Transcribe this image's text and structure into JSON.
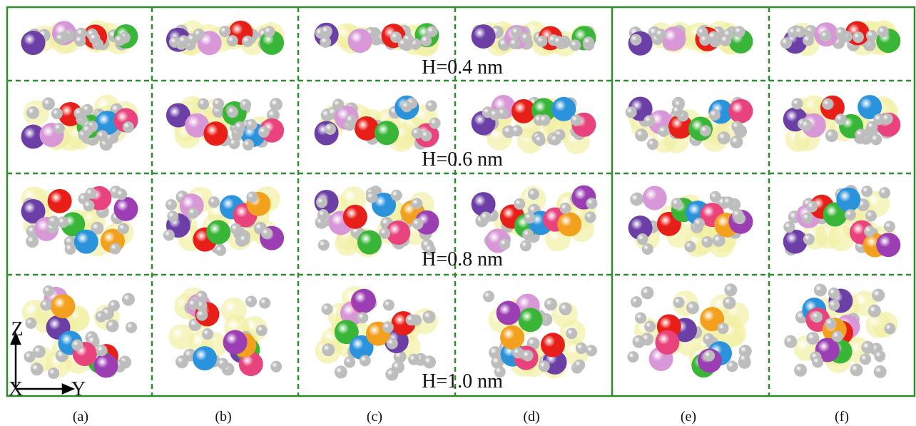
{
  "row_labels": [
    "H=0.4 nm",
    "H=0.6 nm",
    "H=0.8 nm",
    "H=1.0 nm"
  ],
  "panel_labels": [
    "(a)",
    "(b)",
    "(c)",
    "(d)",
    "(e)",
    "(f)"
  ],
  "axes": {
    "z": "Z",
    "x": "X",
    "y": "Y"
  }
}
